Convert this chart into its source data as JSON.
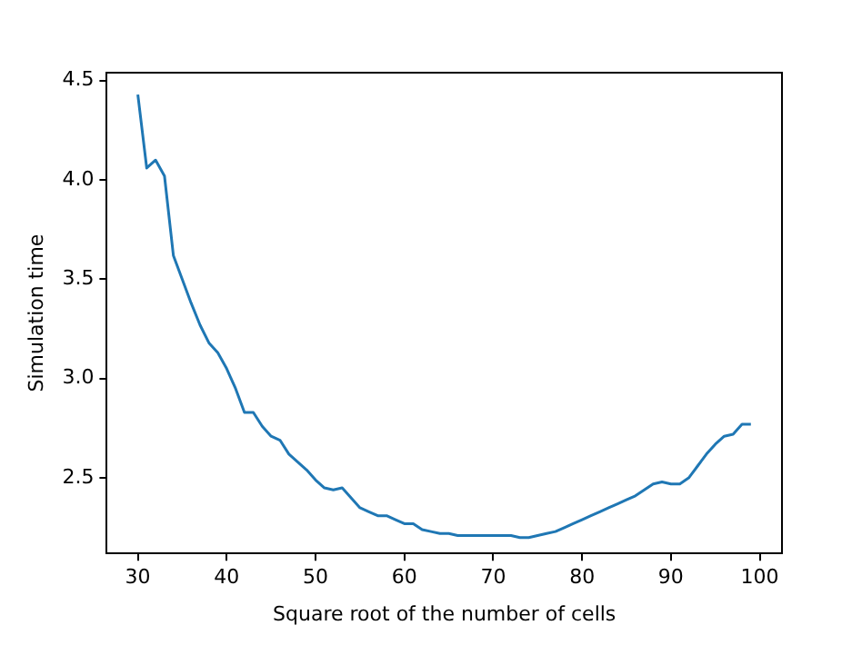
{
  "chart_data": {
    "type": "line",
    "xlabel": "Square root of the number of cells",
    "ylabel": "Simulation time",
    "x": [
      30,
      31,
      32,
      33,
      34,
      35,
      36,
      37,
      38,
      39,
      40,
      41,
      42,
      43,
      44,
      45,
      46,
      47,
      48,
      49,
      50,
      51,
      52,
      53,
      54,
      55,
      56,
      57,
      58,
      59,
      60,
      61,
      62,
      63,
      64,
      65,
      66,
      67,
      68,
      69,
      70,
      71,
      72,
      73,
      74,
      75,
      76,
      77,
      78,
      79,
      80,
      81,
      82,
      83,
      84,
      85,
      86,
      87,
      88,
      89,
      90,
      91,
      92,
      93,
      94,
      95,
      96,
      97,
      98,
      99
    ],
    "series": [
      {
        "color": "#1f77b4",
        "values": [
          4.43,
          4.06,
          4.1,
          4.02,
          3.62,
          3.5,
          3.38,
          3.27,
          3.18,
          3.13,
          3.05,
          2.95,
          2.83,
          2.83,
          2.76,
          2.71,
          2.69,
          2.62,
          2.58,
          2.54,
          2.49,
          2.45,
          2.44,
          2.45,
          2.4,
          2.35,
          2.33,
          2.31,
          2.31,
          2.29,
          2.27,
          2.27,
          2.24,
          2.23,
          2.22,
          2.22,
          2.21,
          2.21,
          2.21,
          2.21,
          2.21,
          2.21,
          2.21,
          2.2,
          2.2,
          2.21,
          2.22,
          2.23,
          2.25,
          2.27,
          2.29,
          2.31,
          2.33,
          2.35,
          2.37,
          2.39,
          2.41,
          2.44,
          2.47,
          2.48,
          2.47,
          2.47,
          2.5,
          2.56,
          2.62,
          2.67,
          2.71,
          2.72,
          2.77,
          2.77
        ]
      }
    ],
    "xlim": [
      26.5,
      102.5
    ],
    "xticks": [
      30,
      40,
      50,
      60,
      70,
      80,
      90,
      100
    ],
    "ylim": [
      2.12,
      4.54
    ],
    "yticks": [
      {
        "value": 2.5,
        "label": "2.5"
      },
      {
        "value": 3.0,
        "label": "3.0"
      },
      {
        "value": 3.5,
        "label": "3.5"
      },
      {
        "value": 4.0,
        "label": "4.0"
      },
      {
        "value": 4.5,
        "label": "4.5"
      }
    ],
    "grid": false,
    "legend": false
  }
}
